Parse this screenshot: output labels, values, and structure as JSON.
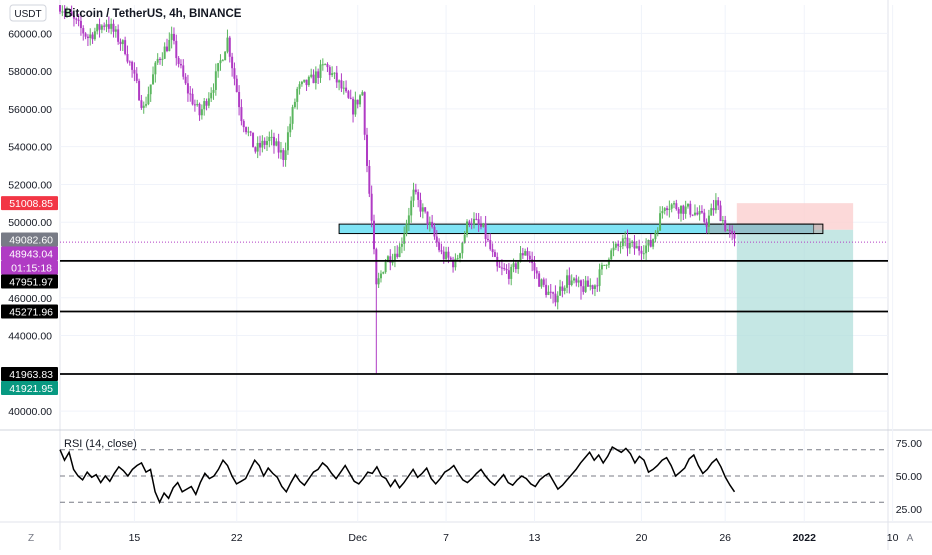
{
  "header": {
    "currency_badge": "USDT",
    "title": "Bitcoin / TetherUS, 4h, BINANCE"
  },
  "footer": {
    "zoom_icon_label": "Z",
    "auto_label": "A"
  },
  "colors": {
    "up": "#5bb65f",
    "down": "#b03bc4",
    "rsi": "#000000",
    "target_zone": "#b2dfdb",
    "stop_zone": "#fbd0d0",
    "cyan_zone": "#7fe3f5",
    "price_red": "#f23645",
    "price_gray": "#787b86",
    "price_purple": "#b03bc4",
    "price_teal": "#089981",
    "price_black": "#000000"
  },
  "chart_data": [
    {
      "type": "candlestick",
      "title": "Bitcoin / TetherUS, 4h, BINANCE",
      "x_ticks": [
        "15",
        "22",
        "Dec",
        "7",
        "13",
        "20",
        "26",
        "2022",
        "10"
      ],
      "ylim": [
        39000,
        61500
      ],
      "y_ticks": [
        "40000.00",
        "42000.00",
        "44000.00",
        "46000.00",
        "48000.00",
        "50000.00",
        "52000.00",
        "54000.00",
        "56000.00",
        "58000.00",
        "60000.00"
      ],
      "series_path": [
        {
          "x": 0,
          "y": 61500
        },
        {
          "x": 6,
          "y": 59800
        },
        {
          "x": 10,
          "y": 60600
        },
        {
          "x": 14,
          "y": 59200
        },
        {
          "x": 18,
          "y": 56000
        },
        {
          "x": 21,
          "y": 58600
        },
        {
          "x": 24,
          "y": 59700
        },
        {
          "x": 27,
          "y": 57200
        },
        {
          "x": 30,
          "y": 55700
        },
        {
          "x": 33,
          "y": 57300
        },
        {
          "x": 36,
          "y": 59700
        },
        {
          "x": 39,
          "y": 55600
        },
        {
          "x": 42,
          "y": 53800
        },
        {
          "x": 45,
          "y": 54400
        },
        {
          "x": 48,
          "y": 53500
        },
        {
          "x": 51,
          "y": 57000
        },
        {
          "x": 54,
          "y": 57500
        },
        {
          "x": 57,
          "y": 58300
        },
        {
          "x": 60,
          "y": 57300
        },
        {
          "x": 63,
          "y": 56000
        },
        {
          "x": 65,
          "y": 56900
        },
        {
          "x": 66,
          "y": 53000
        },
        {
          "x": 67,
          "y": 50000
        },
        {
          "x": 68,
          "y": 46500
        },
        {
          "x": 70,
          "y": 48000
        },
        {
          "x": 73,
          "y": 48600
        },
        {
          "x": 76,
          "y": 51500
        },
        {
          "x": 79,
          "y": 50100
        },
        {
          "x": 82,
          "y": 48300
        },
        {
          "x": 85,
          "y": 47800
        },
        {
          "x": 88,
          "y": 50200
        },
        {
          "x": 91,
          "y": 49600
        },
        {
          "x": 94,
          "y": 47500
        },
        {
          "x": 97,
          "y": 47300
        },
        {
          "x": 100,
          "y": 48600
        },
        {
          "x": 103,
          "y": 46900
        },
        {
          "x": 106,
          "y": 45900
        },
        {
          "x": 109,
          "y": 47000
        },
        {
          "x": 112,
          "y": 46500
        },
        {
          "x": 115,
          "y": 46700
        },
        {
          "x": 118,
          "y": 48300
        },
        {
          "x": 121,
          "y": 48900
        },
        {
          "x": 124,
          "y": 48600
        },
        {
          "x": 127,
          "y": 48800
        },
        {
          "x": 130,
          "y": 51000
        },
        {
          "x": 133,
          "y": 50800
        },
        {
          "x": 136,
          "y": 50600
        },
        {
          "x": 139,
          "y": 50000
        },
        {
          "x": 141,
          "y": 51000
        },
        {
          "x": 143,
          "y": 49800
        },
        {
          "x": 145,
          "y": 48900
        }
      ],
      "wick_lows": [
        {
          "x": 68,
          "y": 42000
        },
        {
          "x": 106,
          "y": 45700
        },
        {
          "x": 112,
          "y": 45900
        }
      ],
      "horizontal_levels": [
        {
          "label": "47951.97",
          "y": 47951.97
        },
        {
          "label": "45271.96",
          "y": 45271.96
        },
        {
          "label": "41963.83",
          "y": 41963.83
        }
      ],
      "zones": {
        "resistance_band": [
          49400,
          49900
        ],
        "entry": 49600,
        "stop": 51008.85,
        "target": 41921.95
      },
      "current_price": 48943.04,
      "countdown": "01:15:18",
      "price_labels": [
        {
          "text": "51008.85",
          "value": 51008.85,
          "color": "red"
        },
        {
          "text": "49082.60",
          "value": 49082.6,
          "color": "gray"
        },
        {
          "text": "48943.04",
          "value": 48943.04,
          "color": "purple"
        },
        {
          "text": "01:15:18",
          "value": 48943.04,
          "color": "purple"
        },
        {
          "text": "47951.97",
          "value": 47951.97,
          "color": "black"
        },
        {
          "text": "45271.96",
          "value": 45271.96,
          "color": "black"
        },
        {
          "text": "41963.83",
          "value": 41963.83,
          "color": "black"
        },
        {
          "text": "41921.95",
          "value": 41921.95,
          "color": "teal"
        }
      ]
    },
    {
      "type": "line",
      "title": "RSI (14, close)",
      "ylim": [
        15,
        85
      ],
      "y_ticks": [
        "75.00",
        "50.00",
        "25.00"
      ],
      "bands": [
        70,
        50,
        30
      ],
      "values": [
        70,
        62,
        68,
        55,
        50,
        47,
        53,
        49,
        51,
        45,
        50,
        46,
        52,
        57,
        54,
        50,
        55,
        58,
        60,
        53,
        55,
        38,
        30,
        37,
        33,
        41,
        45,
        38,
        40,
        42,
        36,
        45,
        52,
        48,
        50,
        55,
        62,
        58,
        50,
        44,
        46,
        48,
        55,
        62,
        58,
        50,
        56,
        52,
        49,
        42,
        38,
        45,
        51,
        46,
        43,
        48,
        53,
        55,
        60,
        57,
        52,
        48,
        53,
        58,
        52,
        46,
        44,
        48,
        53,
        52,
        57,
        50,
        48,
        42,
        47,
        41,
        45,
        50,
        55,
        49,
        52,
        56,
        48,
        44,
        48,
        53,
        55,
        58,
        52,
        47,
        45,
        48,
        52,
        55,
        50,
        46,
        43,
        47,
        51,
        45,
        43,
        47,
        50,
        48,
        44,
        42,
        47,
        50,
        52,
        46,
        40,
        43,
        47,
        51,
        55,
        60,
        64,
        68,
        62,
        66,
        60,
        65,
        72,
        70,
        68,
        71,
        67,
        60,
        65,
        62,
        53,
        55,
        58,
        62,
        64,
        58,
        50,
        53,
        56,
        63,
        66,
        58,
        52,
        55,
        60,
        63,
        57,
        49,
        43,
        38
      ]
    }
  ]
}
